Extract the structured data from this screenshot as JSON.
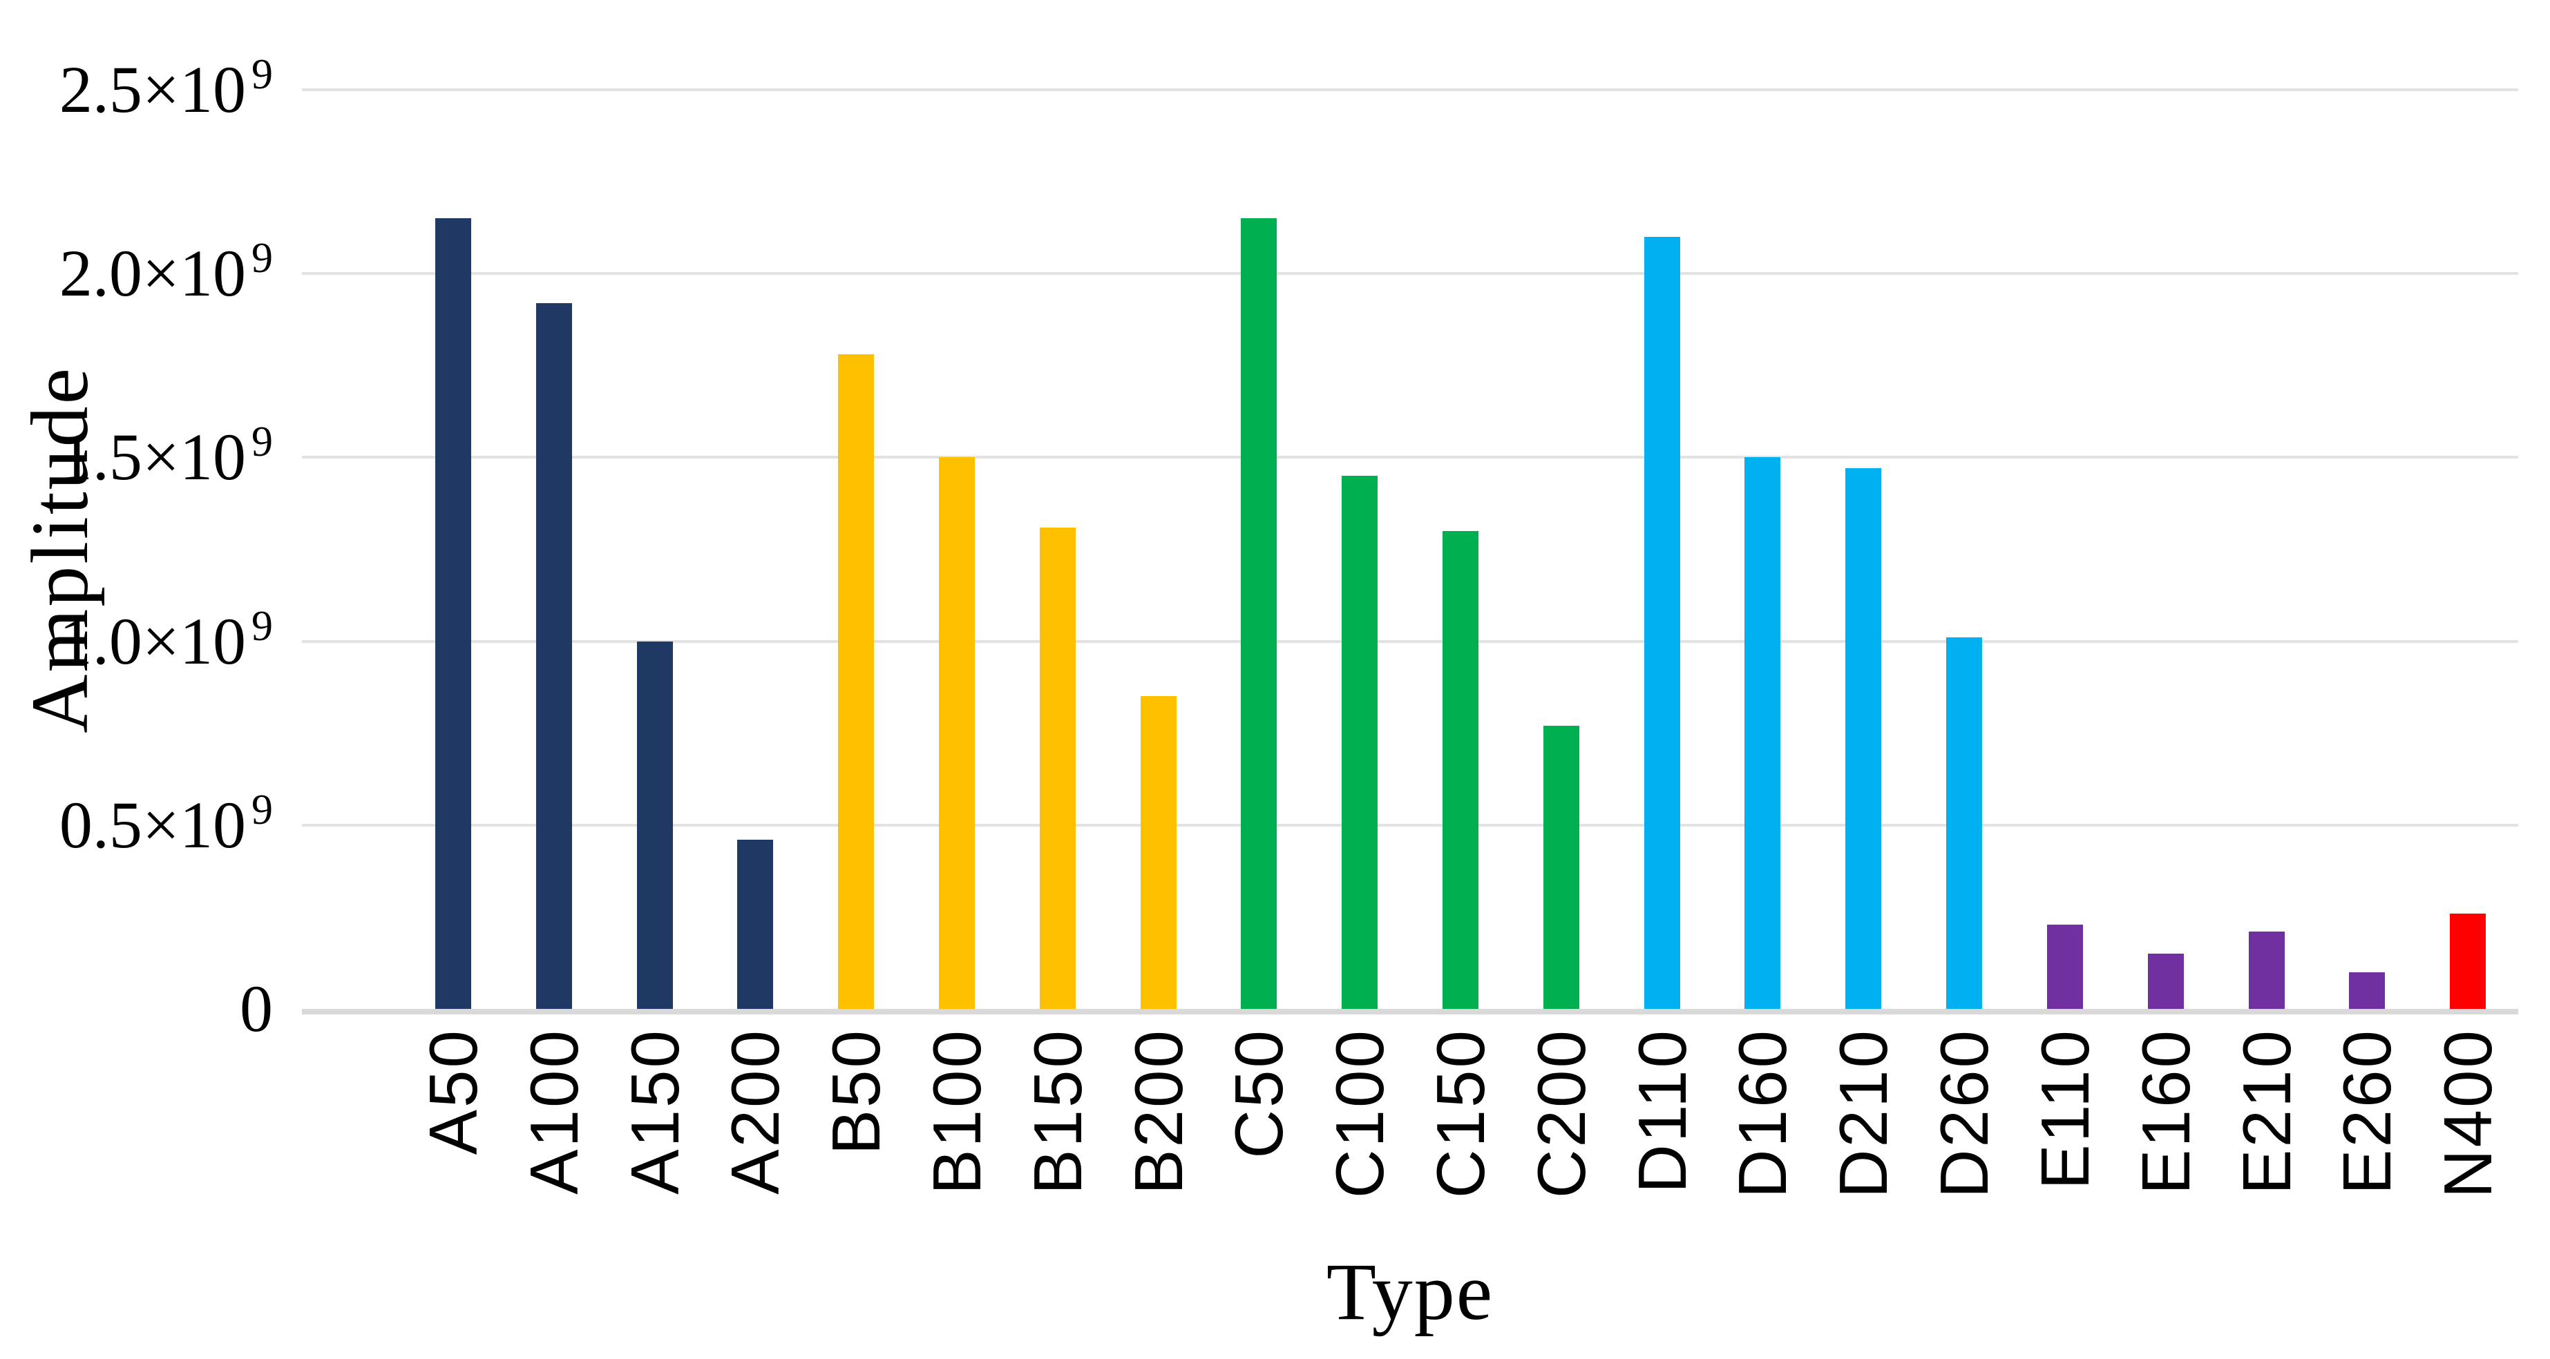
{
  "page": {
    "background": "#FFFFFF",
    "text_color": "#000000",
    "gridline_color": "#E2E2E2",
    "axis_line_color": "#D9D9D9"
  },
  "axes": {
    "y_title": "Amplitude",
    "x_title": "Type",
    "y_ticks": [
      {
        "value": 0,
        "text": "0",
        "sup": ""
      },
      {
        "value": 500000000,
        "text": "0.5×10",
        "sup": "9"
      },
      {
        "value": 1000000000,
        "text": "1.0×10",
        "sup": "9"
      },
      {
        "value": 1500000000,
        "text": "1.5×10",
        "sup": "9"
      },
      {
        "value": 2000000000,
        "text": "2.0×10",
        "sup": "9"
      },
      {
        "value": 2500000000,
        "text": "2.5×10",
        "sup": "9"
      }
    ]
  },
  "chart_data": {
    "type": "bar",
    "title": "",
    "xlabel": "Type",
    "ylabel": "Amplitude",
    "ylim": [
      0,
      2500000000
    ],
    "grid": "horizontal gridlines on",
    "legend_position": "none",
    "y_tick_labels": [
      "0",
      "0.5×10⁹",
      "1.0×10⁹",
      "1.5×10⁹",
      "2.0×10⁹",
      "2.5×10⁹"
    ],
    "categories": [
      "A50",
      "A100",
      "A150",
      "A200",
      "B50",
      "B100",
      "B150",
      "B200",
      "C50",
      "C100",
      "C150",
      "C200",
      "D110",
      "D160",
      "D210",
      "D260",
      "E110",
      "E160",
      "E210",
      "E260",
      "N400"
    ],
    "values": [
      2150000000,
      1920000000,
      1000000000,
      460000000,
      1780000000,
      1500000000,
      1310000000,
      850000000,
      2150000000,
      1450000000,
      1300000000,
      770000000,
      2100000000,
      1500000000,
      1470000000,
      1010000000,
      230000000,
      150000000,
      210000000,
      100000000,
      260000000
    ],
    "bar_colors": [
      "#1F3864",
      "#1F3864",
      "#1F3864",
      "#1F3864",
      "#FFC000",
      "#FFC000",
      "#FFC000",
      "#FFC000",
      "#00B050",
      "#00B050",
      "#00B050",
      "#00B050",
      "#00B0F0",
      "#00B0F0",
      "#00B0F0",
      "#00B0F0",
      "#7030A0",
      "#7030A0",
      "#7030A0",
      "#7030A0",
      "#FF0000"
    ],
    "series_groups": [
      {
        "prefix": "A",
        "color": "#1F3864",
        "color_name": "dark-navy"
      },
      {
        "prefix": "B",
        "color": "#FFC000",
        "color_name": "yellow"
      },
      {
        "prefix": "C",
        "color": "#00B050",
        "color_name": "green"
      },
      {
        "prefix": "D",
        "color": "#00B0F0",
        "color_name": "light-blue"
      },
      {
        "prefix": "E",
        "color": "#7030A0",
        "color_name": "purple"
      },
      {
        "prefix": "N",
        "color": "#FF0000",
        "color_name": "red"
      }
    ]
  }
}
